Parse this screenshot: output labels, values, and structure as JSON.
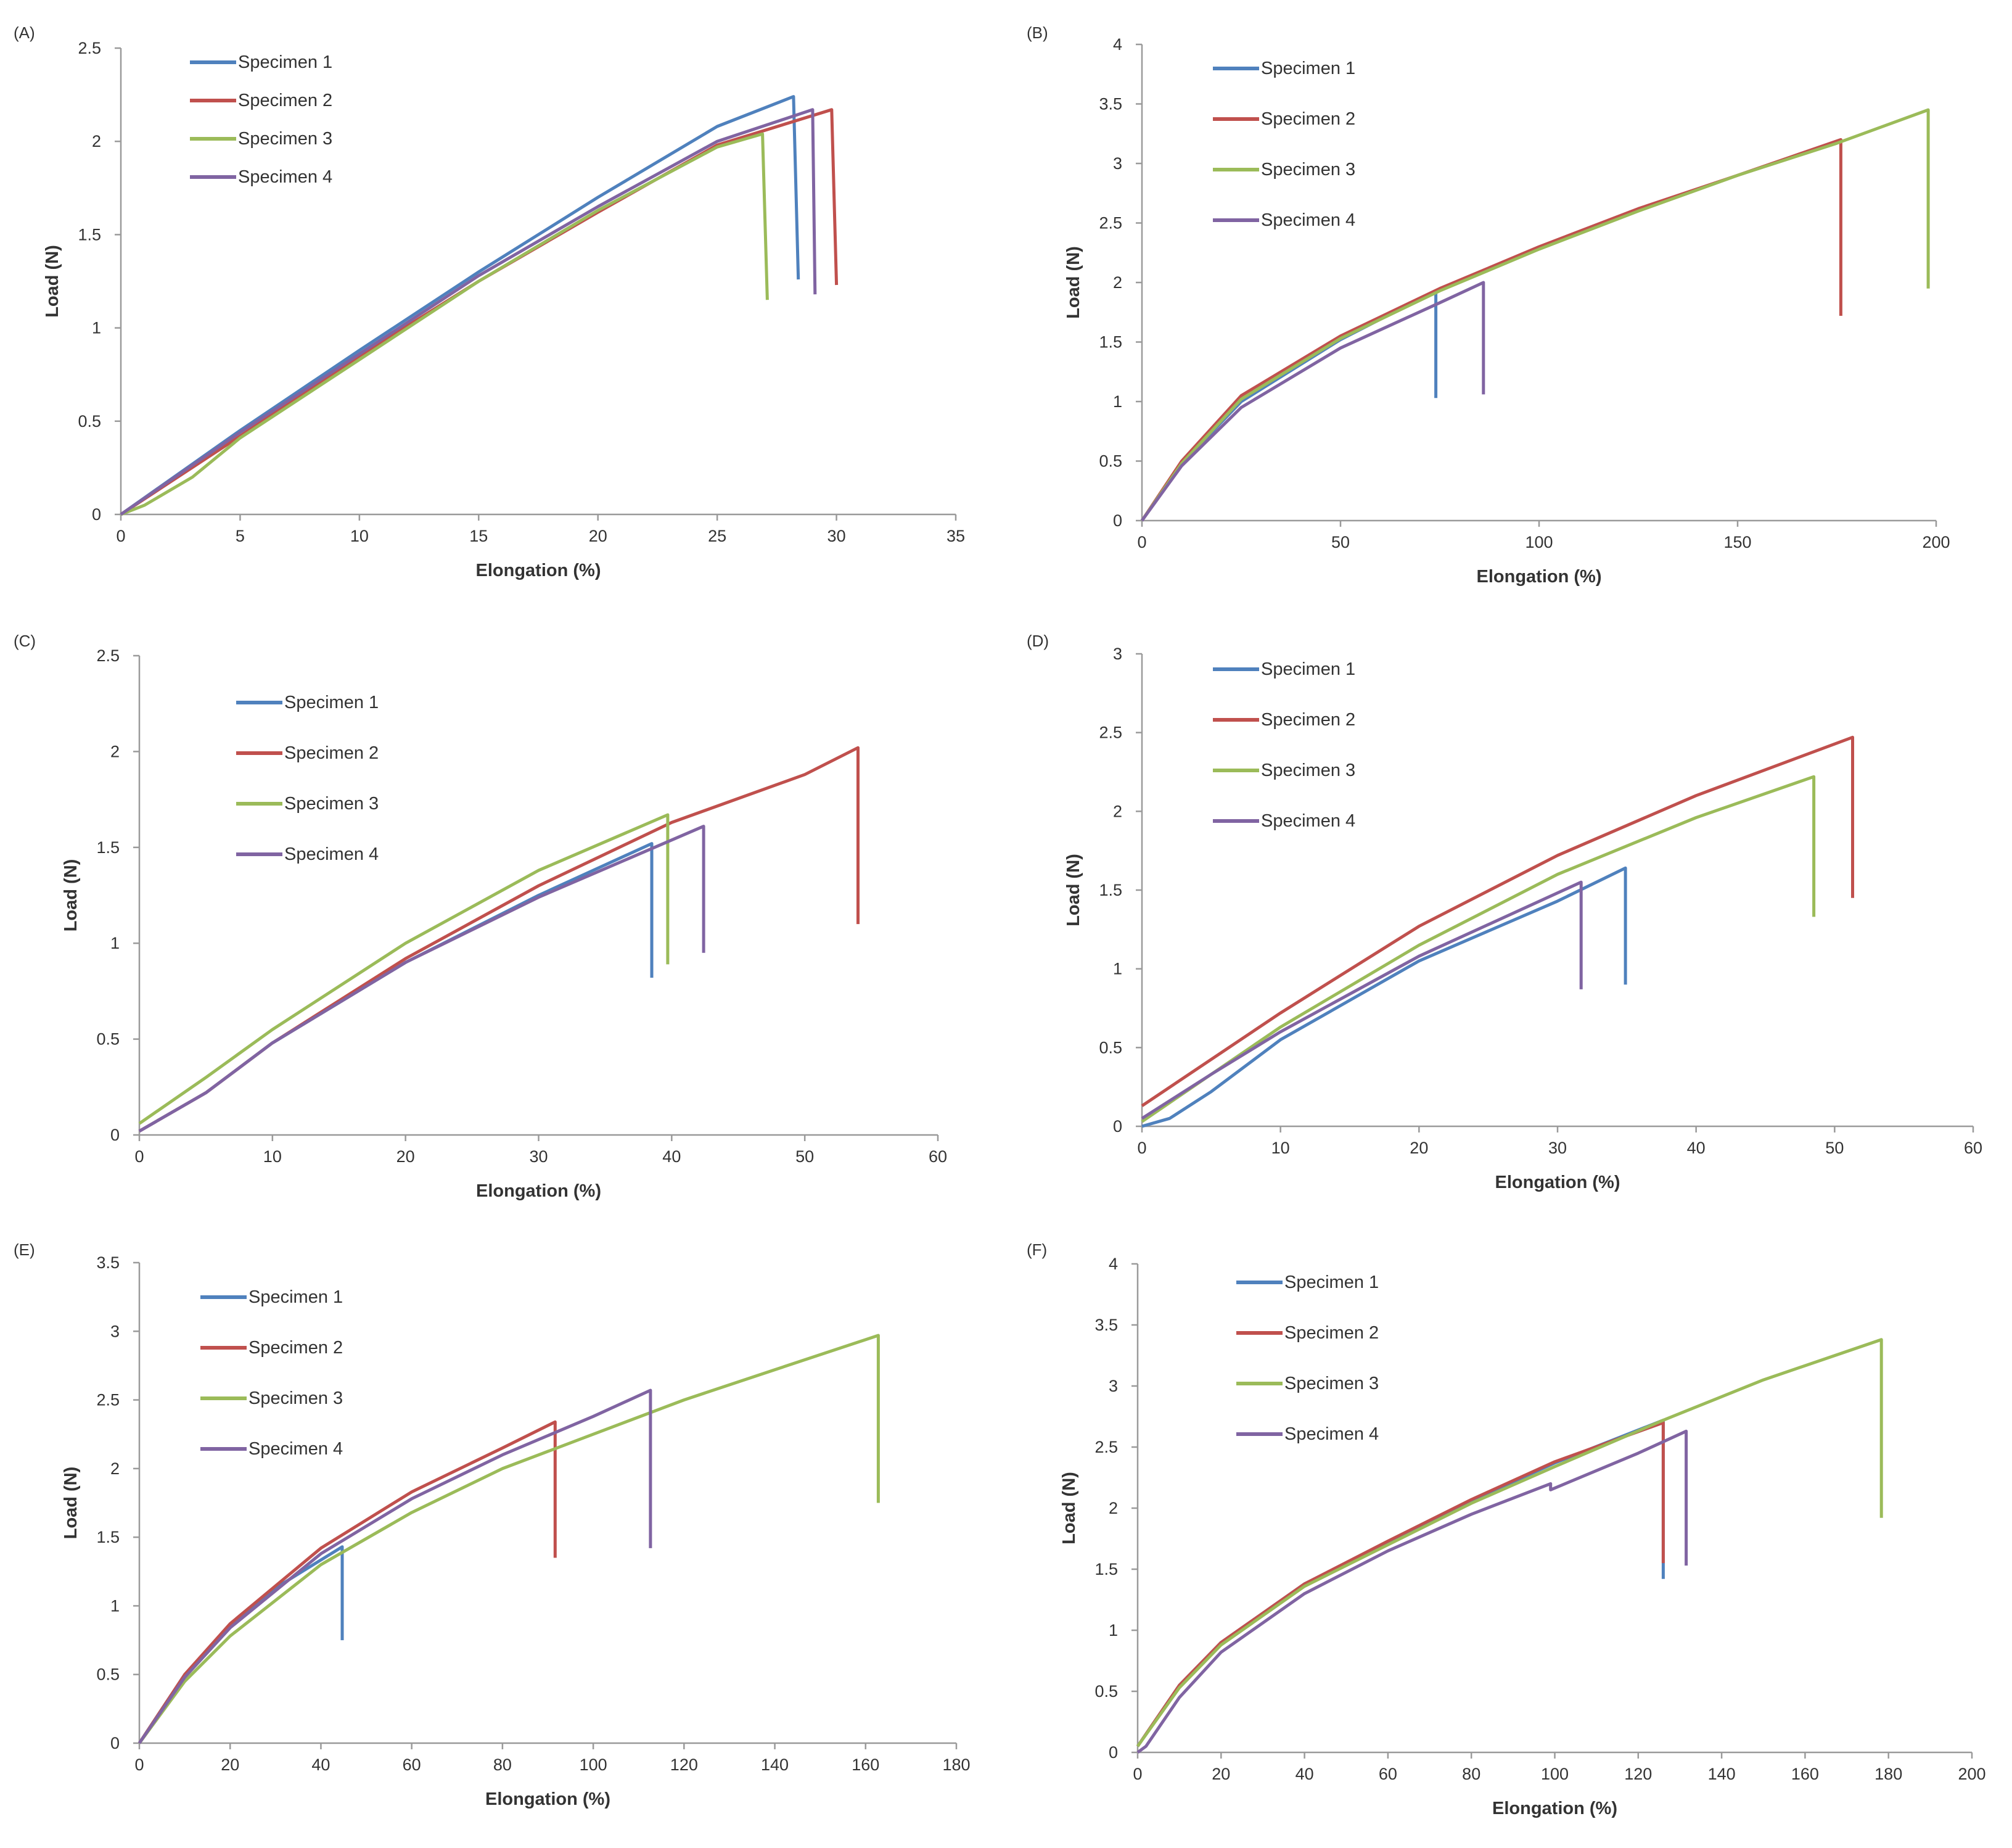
{
  "colors": {
    "specimen_1": "#4f81bd",
    "specimen_2": "#c0504d",
    "specimen_3": "#9bbb59",
    "specimen_4": "#8064a2",
    "axis": "#9a9a9a",
    "text": "#333333"
  },
  "chart_data": [
    {
      "panel": "(A)",
      "type": "line",
      "xlabel": "Elongation (%)",
      "ylabel": "Load (N)",
      "xlim": [
        0,
        35
      ],
      "ylim": [
        0,
        2.5
      ],
      "xticks": [
        "0",
        "5",
        "10",
        "15",
        "20",
        "25",
        "30",
        "35"
      ],
      "yticks": [
        "0",
        "0.5",
        "1",
        "1.5",
        "2",
        "2.5"
      ],
      "legend": [
        "Specimen 1",
        "Specimen 2",
        "Specimen 3",
        "Specimen 4"
      ],
      "series": [
        {
          "name": "Specimen 1",
          "x": [
            0,
            5,
            10,
            15,
            20,
            25,
            28.2,
            28.2,
            28.4
          ],
          "y": [
            0,
            0.45,
            0.88,
            1.3,
            1.7,
            2.08,
            2.24,
            2.24,
            1.26
          ]
        },
        {
          "name": "Specimen 2",
          "x": [
            0,
            5,
            10,
            15,
            20,
            25,
            29.8,
            29.8,
            30.0
          ],
          "y": [
            0,
            0.42,
            0.85,
            1.25,
            1.62,
            1.98,
            2.17,
            2.17,
            1.23
          ]
        },
        {
          "name": "Specimen 3",
          "x": [
            0,
            1,
            3,
            5,
            10,
            15,
            20,
            25,
            26.9,
            26.9,
            27.1
          ],
          "y": [
            0,
            0.05,
            0.2,
            0.41,
            0.83,
            1.25,
            1.63,
            1.97,
            2.04,
            2.04,
            1.15
          ]
        },
        {
          "name": "Specimen 4",
          "x": [
            0,
            5,
            10,
            15,
            20,
            25,
            29.0,
            29.0,
            29.1
          ],
          "y": [
            0,
            0.44,
            0.86,
            1.28,
            1.65,
            2.0,
            2.17,
            2.17,
            1.18
          ]
        }
      ]
    },
    {
      "panel": "(B)",
      "type": "line",
      "xlabel": "Elongation (%)",
      "ylabel": "Load (N)",
      "xlim": [
        0,
        200
      ],
      "ylim": [
        0,
        4
      ],
      "xticks": [
        "0",
        "50",
        "100",
        "150",
        "200"
      ],
      "yticks": [
        "0",
        "0.5",
        "1",
        "1.5",
        "2",
        "2.5",
        "3",
        "3.5",
        "4"
      ],
      "legend": [
        "Specimen 1",
        "Specimen 2",
        "Specimen 3",
        "Specimen 4"
      ],
      "series": [
        {
          "name": "Specimen 1",
          "x": [
            0,
            10,
            25,
            50,
            74,
            74
          ],
          "y": [
            0,
            0.48,
            1.0,
            1.52,
            1.93,
            1.03
          ]
        },
        {
          "name": "Specimen 2",
          "x": [
            0,
            10,
            25,
            50,
            75,
            100,
            125,
            150,
            176,
            176
          ],
          "y": [
            0,
            0.5,
            1.05,
            1.55,
            1.95,
            2.3,
            2.62,
            2.9,
            3.2,
            1.72
          ]
        },
        {
          "name": "Specimen 3",
          "x": [
            0,
            10,
            25,
            50,
            75,
            100,
            125,
            150,
            175,
            198,
            198
          ],
          "y": [
            0,
            0.48,
            1.02,
            1.53,
            1.93,
            2.28,
            2.6,
            2.9,
            3.17,
            3.45,
            1.95
          ]
        },
        {
          "name": "Specimen 4",
          "x": [
            0,
            10,
            25,
            50,
            75,
            86,
            86
          ],
          "y": [
            0,
            0.46,
            0.95,
            1.45,
            1.83,
            2.0,
            1.06
          ]
        }
      ]
    },
    {
      "panel": "(C)",
      "type": "line",
      "xlabel": "Elongation (%)",
      "ylabel": "Load (N)",
      "xlim": [
        0,
        60
      ],
      "ylim": [
        0,
        2.5
      ],
      "xticks": [
        "0",
        "10",
        "20",
        "30",
        "40",
        "50",
        "60"
      ],
      "yticks": [
        "0",
        "0.5",
        "1",
        "1.5",
        "2",
        "2.5"
      ],
      "legend": [
        "Specimen 1",
        "Specimen 2",
        "Specimen 3",
        "Specimen 4"
      ],
      "series": [
        {
          "name": "Specimen 1",
          "x": [
            0,
            5,
            10,
            20,
            30,
            38.5,
            38.5
          ],
          "y": [
            0.02,
            0.22,
            0.48,
            0.9,
            1.25,
            1.52,
            0.82
          ]
        },
        {
          "name": "Specimen 2",
          "x": [
            0,
            5,
            10,
            20,
            30,
            40,
            50,
            54,
            54
          ],
          "y": [
            0.02,
            0.22,
            0.48,
            0.92,
            1.3,
            1.63,
            1.88,
            2.02,
            1.1
          ]
        },
        {
          "name": "Specimen 3",
          "x": [
            0,
            5,
            10,
            20,
            30,
            39.7,
            39.7
          ],
          "y": [
            0.06,
            0.3,
            0.55,
            1.0,
            1.38,
            1.67,
            0.89
          ]
        },
        {
          "name": "Specimen 4",
          "x": [
            0,
            5,
            10,
            20,
            30,
            42.4,
            42.4
          ],
          "y": [
            0.02,
            0.22,
            0.48,
            0.9,
            1.24,
            1.61,
            0.95
          ]
        }
      ]
    },
    {
      "panel": "(D)",
      "type": "line",
      "xlabel": "Elongation (%)",
      "ylabel": "Load (N)",
      "xlim": [
        0,
        60
      ],
      "ylim": [
        0,
        3
      ],
      "xticks": [
        "0",
        "10",
        "20",
        "30",
        "40",
        "50",
        "60"
      ],
      "yticks": [
        "0",
        "0.5",
        "1",
        "1.5",
        "2",
        "2.5",
        "3"
      ],
      "legend": [
        "Specimen 1",
        "Specimen 2",
        "Specimen 3",
        "Specimen 4"
      ],
      "series": [
        {
          "name": "Specimen 1",
          "x": [
            0,
            2,
            5,
            10,
            20,
            30,
            34.9,
            34.9
          ],
          "y": [
            0,
            0.05,
            0.22,
            0.55,
            1.05,
            1.43,
            1.64,
            0.9
          ]
        },
        {
          "name": "Specimen 2",
          "x": [
            0,
            10,
            20,
            30,
            40,
            51.3,
            51.3
          ],
          "y": [
            0.13,
            0.72,
            1.27,
            1.72,
            2.1,
            2.47,
            1.45
          ]
        },
        {
          "name": "Specimen 3",
          "x": [
            0,
            5,
            10,
            20,
            30,
            40,
            48.5,
            48.5
          ],
          "y": [
            0.03,
            0.33,
            0.63,
            1.15,
            1.6,
            1.96,
            2.22,
            1.33
          ]
        },
        {
          "name": "Specimen 4",
          "x": [
            0,
            5,
            10,
            20,
            31.7,
            31.7
          ],
          "y": [
            0.05,
            0.33,
            0.6,
            1.08,
            1.55,
            0.87
          ]
        }
      ]
    },
    {
      "panel": "(E)",
      "type": "line",
      "xlabel": "Elongation (%)",
      "ylabel": "Load (N)",
      "xlim": [
        0,
        180
      ],
      "ylim": [
        0,
        3.5
      ],
      "xticks": [
        "0",
        "20",
        "40",
        "60",
        "80",
        "100",
        "120",
        "140",
        "160",
        "180"
      ],
      "yticks": [
        "0",
        "0.5",
        "1",
        "1.5",
        "2",
        "2.5",
        "3",
        "3.5"
      ],
      "legend": [
        "Specimen 1",
        "Specimen 2",
        "Specimen 3",
        "Specimen 4"
      ],
      "series": [
        {
          "name": "Specimen 1",
          "x": [
            0,
            10,
            20,
            30,
            44.7,
            44.7
          ],
          "y": [
            0,
            0.5,
            0.85,
            1.13,
            1.43,
            0.75
          ]
        },
        {
          "name": "Specimen 2",
          "x": [
            0,
            10,
            20,
            40,
            60,
            80,
            91.6,
            91.6
          ],
          "y": [
            0,
            0.5,
            0.87,
            1.42,
            1.83,
            2.15,
            2.34,
            1.35
          ]
        },
        {
          "name": "Specimen 3",
          "x": [
            0,
            10,
            20,
            40,
            60,
            80,
            100,
            120,
            140,
            162.8,
            162.8
          ],
          "y": [
            0,
            0.45,
            0.78,
            1.3,
            1.68,
            2.0,
            2.25,
            2.5,
            2.72,
            2.97,
            1.75
          ]
        },
        {
          "name": "Specimen 4",
          "x": [
            0,
            10,
            20,
            40,
            60,
            80,
            100,
            112.6,
            112.6
          ],
          "y": [
            0,
            0.48,
            0.84,
            1.38,
            1.78,
            2.1,
            2.38,
            2.57,
            1.42
          ]
        }
      ]
    },
    {
      "panel": "(F)",
      "type": "line",
      "xlabel": "Elongation (%)",
      "ylabel": "Load (N)",
      "xlim": [
        0,
        200
      ],
      "ylim": [
        0,
        4
      ],
      "xticks": [
        "0",
        "20",
        "40",
        "60",
        "80",
        "100",
        "120",
        "140",
        "160",
        "180",
        "200"
      ],
      "yticks": [
        "0",
        "0.5",
        "1",
        "1.5",
        "2",
        "2.5",
        "3",
        "3.5",
        "4"
      ],
      "legend": [
        "Specimen 1",
        "Specimen 2",
        "Specimen 3",
        "Specimen 4"
      ],
      "series": [
        {
          "name": "Specimen 1",
          "x": [
            0,
            10,
            20,
            40,
            60,
            80,
            100,
            126,
            126
          ],
          "y": [
            0.05,
            0.55,
            0.9,
            1.38,
            1.72,
            2.06,
            2.37,
            2.72,
            1.42
          ]
        },
        {
          "name": "Specimen 2",
          "x": [
            0,
            10,
            20,
            40,
            60,
            80,
            100,
            126,
            126
          ],
          "y": [
            0.05,
            0.55,
            0.9,
            1.38,
            1.73,
            2.07,
            2.38,
            2.7,
            1.55
          ]
        },
        {
          "name": "Specimen 3",
          "x": [
            0,
            10,
            20,
            40,
            60,
            80,
            100,
            126,
            150,
            178.3,
            178.3
          ],
          "y": [
            0.05,
            0.53,
            0.88,
            1.36,
            1.7,
            2.04,
            2.34,
            2.72,
            3.05,
            3.38,
            1.92
          ]
        },
        {
          "name": "Specimen 4",
          "x": [
            0,
            2,
            10,
            20,
            40,
            60,
            80,
            99,
            99,
            120,
            131.5,
            131.5
          ],
          "y": [
            0,
            0.05,
            0.45,
            0.82,
            1.3,
            1.65,
            1.95,
            2.2,
            2.15,
            2.45,
            2.63,
            1.53
          ]
        }
      ]
    }
  ]
}
